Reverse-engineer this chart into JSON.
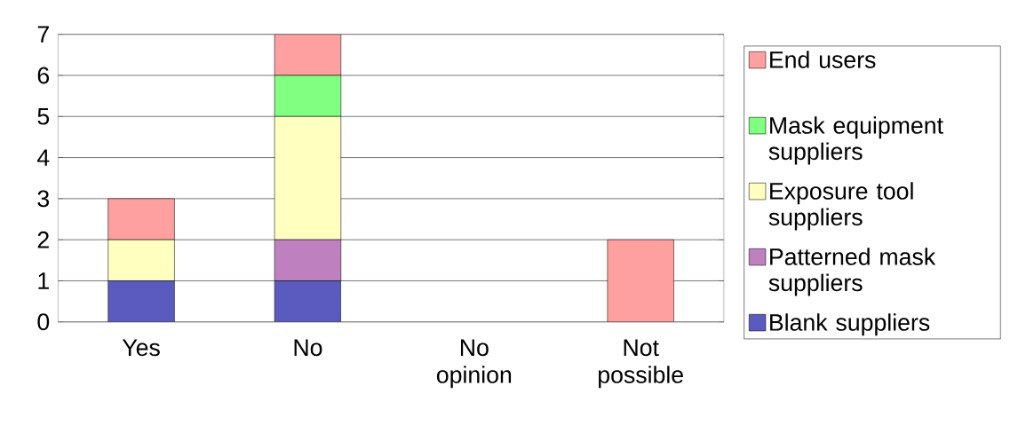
{
  "chart_data": {
    "type": "bar",
    "stacked": true,
    "categories": [
      "Yes",
      "No",
      "No opinion",
      "Not possible"
    ],
    "series": [
      {
        "name": "Blank suppliers",
        "color": "#5b5bbf",
        "values": [
          1,
          1,
          0,
          0
        ]
      },
      {
        "name": "Patterned mask suppliers",
        "color": "#bf80bf",
        "values": [
          0,
          1,
          0,
          0
        ]
      },
      {
        "name": "Exposure tool suppliers",
        "color": "#ffffc0",
        "values": [
          1,
          3,
          0,
          0
        ]
      },
      {
        "name": "Mask equipment suppliers",
        "color": "#80ff80",
        "values": [
          0,
          1,
          0,
          0
        ]
      },
      {
        "name": "End users",
        "color": "#ffa0a0",
        "values": [
          1,
          1,
          0,
          2
        ]
      }
    ],
    "ylim": [
      0,
      7
    ],
    "yticks": [
      0,
      1,
      2,
      3,
      4,
      5,
      6,
      7
    ],
    "grid": "y",
    "legend": "right"
  }
}
